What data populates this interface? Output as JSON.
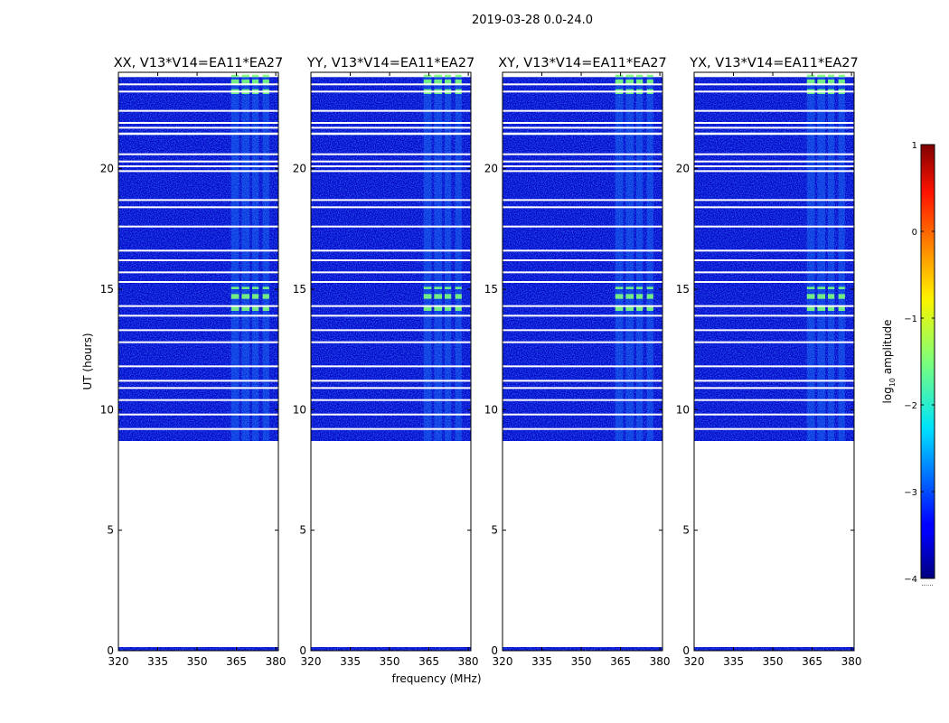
{
  "figure": {
    "suptitle": "2019-03-28 0.0-24.0",
    "xlabel": "frequency (MHz)",
    "ylabel": "UT (hours)"
  },
  "chart_data": {
    "type": "heatmap",
    "title": "2019-03-28 0.0-24.0",
    "xlabel": "frequency (MHz)",
    "ylabel": "UT (hours)",
    "xlim": [
      320,
      381
    ],
    "ylim": [
      0,
      24
    ],
    "x_ticks": [
      320,
      335,
      350,
      365,
      380
    ],
    "y_ticks": [
      0,
      5,
      10,
      15,
      20
    ],
    "panels": [
      {
        "name": "XX, V13*V14=EA11*EA27"
      },
      {
        "name": "YY, V13*V14=EA11*EA27"
      },
      {
        "name": "XY, V13*V14=EA11*EA27"
      },
      {
        "name": "YX, V13*V14=EA11*EA27"
      }
    ],
    "data_ranges_ut": [
      [
        0.0,
        0.15
      ],
      [
        8.7,
        21.4
      ],
      [
        21.5,
        23.8
      ]
    ],
    "white_gap_rows_ut": [
      9.2,
      9.8,
      10.4,
      10.9,
      11.2,
      11.8,
      12.8,
      13.3,
      13.9,
      14.3,
      15.3,
      15.7,
      16.2,
      16.6,
      17.6,
      18.4,
      18.7,
      19.9,
      20.1,
      20.3,
      20.6,
      21.7,
      21.9,
      22.4,
      23.2,
      23.5
    ],
    "strong_rfi_bands_mhz": [
      [
        363,
        366
      ],
      [
        367,
        370
      ],
      [
        371,
        373.5
      ],
      [
        375,
        377.5
      ]
    ],
    "strong_rfi_ut": [
      [
        14.1,
        14.3
      ],
      [
        14.6,
        14.8
      ],
      [
        15.0,
        15.1
      ],
      [
        23.1,
        23.3
      ],
      [
        23.5,
        23.7
      ],
      [
        23.8,
        23.9
      ]
    ],
    "colorbar": {
      "label": "log10 amplitude",
      "label_main": "log",
      "label_sub": "10",
      "label_rest": " amplitude",
      "min": -4,
      "max": 1,
      "ticks": [
        -4,
        -3,
        -2,
        -1,
        0,
        1
      ],
      "colormap": "jet",
      "extra_text": "......"
    }
  },
  "colors": {
    "jet_low": "#00007f",
    "jet_mid": "#7dff7a",
    "jet_high": "#7f0000",
    "background_data": "#0000c8"
  }
}
